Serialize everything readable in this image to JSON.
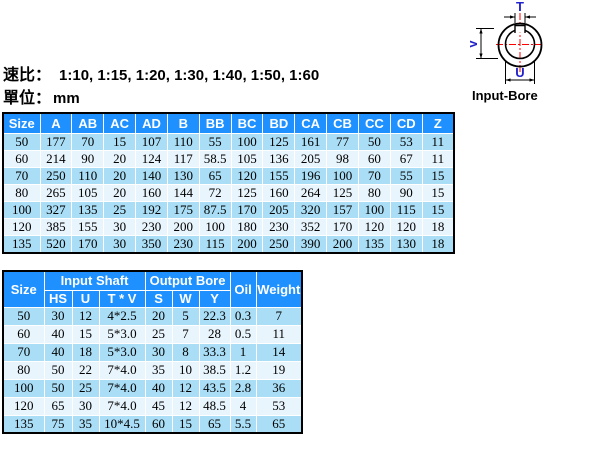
{
  "header": {
    "speed_ratio_label": "速比：",
    "speed_ratio_values": "1:10, 1:15, 1:20, 1:30, 1:40, 1:50, 1:60",
    "unit_label": "單位：",
    "unit_value": "mm"
  },
  "diagram": {
    "caption": "Input-Bore",
    "dim_top": "T",
    "dim_left": "V",
    "dim_bottom": "U"
  },
  "colors": {
    "table_header_blue": "#1e90ff",
    "row_light_blue": "#aadef6",
    "row_pale_blue": "#e9f5fd",
    "dimension_label_blue": "#2222cc",
    "centerline_red": "#ff0000",
    "table_border_black": "#000000"
  },
  "dimension_table": {
    "headers": [
      "Size",
      "A",
      "AB",
      "AC",
      "AD",
      "B",
      "BB",
      "BC",
      "BD",
      "CA",
      "CB",
      "CC",
      "CD",
      "Z"
    ],
    "rows": [
      [
        "50",
        "177",
        "70",
        "15",
        "107",
        "110",
        "55",
        "100",
        "125",
        "161",
        "77",
        "50",
        "53",
        "11"
      ],
      [
        "60",
        "214",
        "90",
        "20",
        "124",
        "117",
        "58.5",
        "105",
        "136",
        "205",
        "98",
        "60",
        "67",
        "11"
      ],
      [
        "70",
        "250",
        "110",
        "20",
        "140",
        "130",
        "65",
        "120",
        "155",
        "196",
        "100",
        "70",
        "55",
        "15"
      ],
      [
        "80",
        "265",
        "105",
        "20",
        "160",
        "144",
        "72",
        "125",
        "160",
        "264",
        "125",
        "80",
        "90",
        "15"
      ],
      [
        "100",
        "327",
        "135",
        "25",
        "192",
        "175",
        "87.5",
        "170",
        "205",
        "320",
        "157",
        "100",
        "115",
        "15"
      ],
      [
        "120",
        "385",
        "155",
        "30",
        "230",
        "200",
        "100",
        "180",
        "230",
        "352",
        "170",
        "120",
        "120",
        "18"
      ],
      [
        "135",
        "520",
        "170",
        "30",
        "350",
        "230",
        "115",
        "200",
        "250",
        "390",
        "200",
        "135",
        "130",
        "18"
      ]
    ]
  },
  "shaft_table": {
    "group_headers": {
      "size": "Size",
      "input_shaft": "Input Shaft",
      "output_bore": "Output Bore",
      "oil": "Oil",
      "weight": "Weight"
    },
    "sub_headers": [
      "HS",
      "U",
      "T * V",
      "S",
      "W",
      "Y"
    ],
    "rows": [
      [
        "50",
        "30",
        "12",
        "4*2.5",
        "20",
        "5",
        "22.3",
        "0.3",
        "7"
      ],
      [
        "60",
        "40",
        "15",
        "5*3.0",
        "25",
        "7",
        "28",
        "0.5",
        "11"
      ],
      [
        "70",
        "40",
        "18",
        "5*3.0",
        "30",
        "8",
        "33.3",
        "1",
        "14"
      ],
      [
        "80",
        "50",
        "22",
        "7*4.0",
        "35",
        "10",
        "38.5",
        "1.2",
        "19"
      ],
      [
        "100",
        "50",
        "25",
        "7*4.0",
        "40",
        "12",
        "43.5",
        "2.8",
        "36"
      ],
      [
        "120",
        "65",
        "30",
        "7*4.0",
        "45",
        "12",
        "48.5",
        "4",
        "53"
      ],
      [
        "135",
        "75",
        "35",
        "10*4.5",
        "60",
        "15",
        "65",
        "5.5",
        "65"
      ]
    ]
  }
}
